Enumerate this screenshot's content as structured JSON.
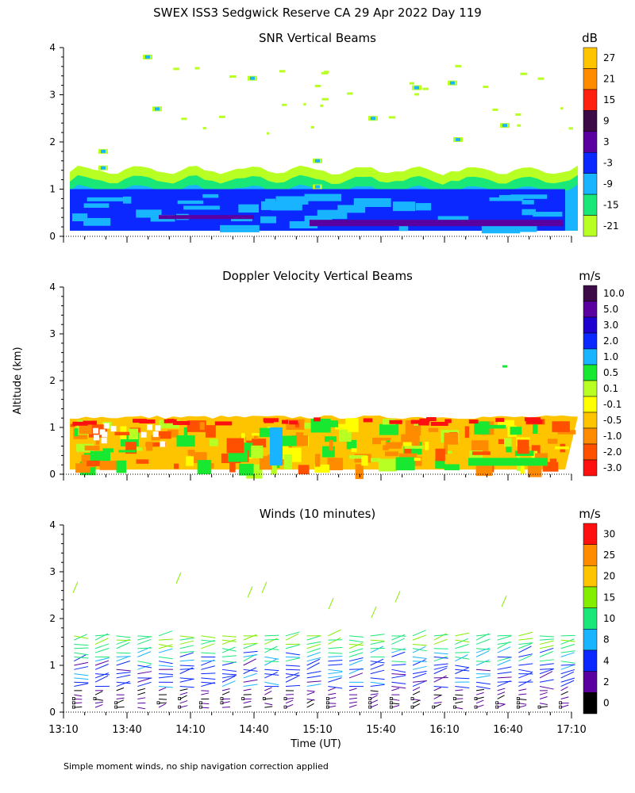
{
  "page": {
    "title": "SWEX ISS3 Sedgwick Reserve CA  29 Apr 2022 Day 119",
    "ylabel": "Altitude (km)",
    "xlabel": "Time (UT)",
    "footnote": "Simple moment winds, no ship navigation correction applied"
  },
  "chart_data": [
    {
      "type": "heatmap",
      "title": "SNR Vertical Beams",
      "ylabel": "Altitude (km)",
      "ylim": [
        0,
        4
      ],
      "yticks": [
        "0",
        "1",
        "2",
        "3",
        "4"
      ],
      "xlim": [
        "13:10",
        "17:10"
      ],
      "xticks": [],
      "colorbar": {
        "unit": "dB",
        "labels": [
          "27",
          "21",
          "15",
          "9",
          "3",
          "-3",
          "-9",
          "-15",
          "-21"
        ],
        "colors": [
          "#ffc400",
          "#ff8c00",
          "#ff2010",
          "#3c0a46",
          "#5a00a0",
          "#0a28ff",
          "#19b4ff",
          "#19e878",
          "#b8ff24"
        ]
      },
      "layers": [
        {
          "from_km": 0.0,
          "to_km": 0.5,
          "value_db": -3,
          "note_color": "#0a28ff"
        },
        {
          "from_km": 0.5,
          "to_km": 1.0,
          "value_db": -6,
          "note_color": "#19b4ff"
        },
        {
          "from_km": 1.0,
          "to_km": 1.25,
          "value_db": -12,
          "note_color": "#19e878"
        },
        {
          "from_km": 1.2,
          "to_km": 1.5,
          "value_db": -21,
          "note_color": "#b8ff24"
        }
      ]
    },
    {
      "type": "heatmap",
      "title": "Doppler Velocity Vertical Beams",
      "ylabel": "Altitude (km)",
      "ylim": [
        0,
        4
      ],
      "yticks": [
        "0",
        "1",
        "2",
        "3",
        "4"
      ],
      "xlim": [
        "13:10",
        "17:10"
      ],
      "xticks": [],
      "colorbar": {
        "unit": "m/s",
        "labels": [
          "10.0",
          "5.0",
          "3.0",
          "2.0",
          "1.0",
          "0.5",
          "0.1",
          "-0.1",
          "-0.5",
          "-1.0",
          "-2.0",
          "-3.0"
        ],
        "colors": [
          "#3c0a46",
          "#5a00a0",
          "#1e00d0",
          "#0a28ff",
          "#19b4ff",
          "#19e830",
          "#b8ff24",
          "#ffff00",
          "#ffc400",
          "#ff8c00",
          "#ff5000",
          "#ff1010"
        ]
      },
      "layers": [
        {
          "from_km": 0.1,
          "to_km": 1.25,
          "value_ms": -0.5,
          "note_color": "#ffc400"
        }
      ]
    },
    {
      "type": "wind_barbs",
      "title": "Winds (10 minutes)",
      "ylabel": "Altitude (km)",
      "ylim": [
        0,
        4
      ],
      "yticks": [
        "0",
        "1",
        "2",
        "3",
        "4"
      ],
      "xlim": [
        "13:10",
        "17:10"
      ],
      "xticks": [
        "13:10",
        "13:40",
        "14:10",
        "14:40",
        "15:10",
        "15:40",
        "16:10",
        "16:40",
        "17:10"
      ],
      "xlabel": "Time (UT)",
      "colorbar": {
        "unit": "m/s",
        "labels": [
          "30",
          "25",
          "20",
          "15",
          "10",
          "8",
          "4",
          "2",
          "0"
        ],
        "colors": [
          "#ff1010",
          "#ff8c00",
          "#ffc400",
          "#84ee00",
          "#19e878",
          "#19b4ff",
          "#0a28ff",
          "#5a00a0",
          "#000000"
        ]
      },
      "profiles_every_min": 10,
      "profile_count": 24,
      "wind_top_km": 1.7
    }
  ]
}
